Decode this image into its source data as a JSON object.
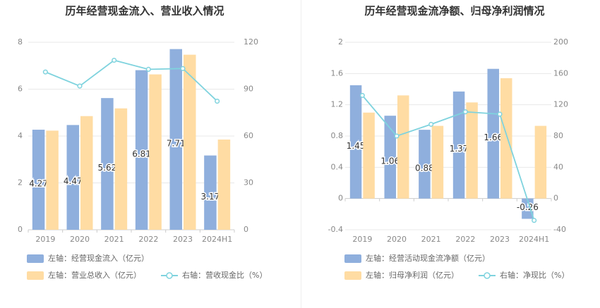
{
  "chart_data": [
    {
      "type": "bar",
      "title": "历年经营现金流入、营业收入情况",
      "categories": [
        "2019",
        "2020",
        "2021",
        "2022",
        "2023",
        "2024H1"
      ],
      "left_axis": {
        "ylim": [
          0,
          8
        ],
        "ticks": [
          "0",
          "2",
          "4",
          "6",
          "8"
        ]
      },
      "right_axis": {
        "ylim": [
          0,
          120
        ],
        "ticks": [
          "0",
          "30",
          "60",
          "90",
          "120"
        ]
      },
      "series": [
        {
          "name": "左轴：经营现金流入（亿元）",
          "axis": "left",
          "kind": "bar",
          "color": "#8fafdd",
          "values": [
            4.27,
            4.47,
            5.62,
            6.81,
            7.71,
            3.17
          ],
          "labels": [
            "4.27",
            "4.47",
            "5.62",
            "6.81",
            "7.71",
            "3.17"
          ]
        },
        {
          "name": "左轴：营业总收入（亿元）",
          "axis": "left",
          "kind": "bar",
          "color": "#ffdca3",
          "values": [
            4.23,
            4.85,
            5.18,
            6.63,
            7.47,
            3.85
          ]
        },
        {
          "name": "右轴：营收现金比（%）",
          "axis": "right",
          "kind": "line",
          "color": "#7fd3de",
          "values": [
            101,
            92,
            108.5,
            102.7,
            103.2,
            82.3
          ]
        }
      ],
      "legend_rows": [
        [
          0
        ],
        [
          1,
          2
        ]
      ],
      "grid": true
    },
    {
      "type": "bar",
      "title": "历年经营现金流净额、归母净利润情况",
      "categories": [
        "2019",
        "2020",
        "2021",
        "2022",
        "2023",
        "2024H1"
      ],
      "left_axis": {
        "ylim": [
          -0.4,
          2
        ],
        "ticks": [
          "-0.4",
          "0",
          "0.4",
          "0.8",
          "1.2",
          "1.6",
          "2"
        ]
      },
      "right_axis": {
        "ylim": [
          -40,
          200
        ],
        "ticks": [
          "-40",
          "0",
          "40",
          "80",
          "120",
          "160",
          "200"
        ]
      },
      "series": [
        {
          "name": "左轴：经营活动现金流净额（亿元）",
          "axis": "left",
          "kind": "bar",
          "color": "#8fafdd",
          "values": [
            1.45,
            1.06,
            0.88,
            1.37,
            1.66,
            -0.26
          ],
          "labels": [
            "1.45",
            "1.06",
            "0.88",
            "1.37",
            "1.66",
            "-0.26"
          ]
        },
        {
          "name": "左轴：归母净利润（亿元）",
          "axis": "left",
          "kind": "bar",
          "color": "#ffdca3",
          "values": [
            1.1,
            1.32,
            0.93,
            1.23,
            1.54,
            0.93
          ]
        },
        {
          "name": "右轴：净现比（%）",
          "axis": "right",
          "kind": "line",
          "color": "#7fd3de",
          "values": [
            132,
            80,
            95,
            111,
            108,
            -28
          ]
        }
      ],
      "legend_rows": [
        [
          0
        ],
        [
          1,
          2
        ]
      ],
      "grid": true
    }
  ]
}
